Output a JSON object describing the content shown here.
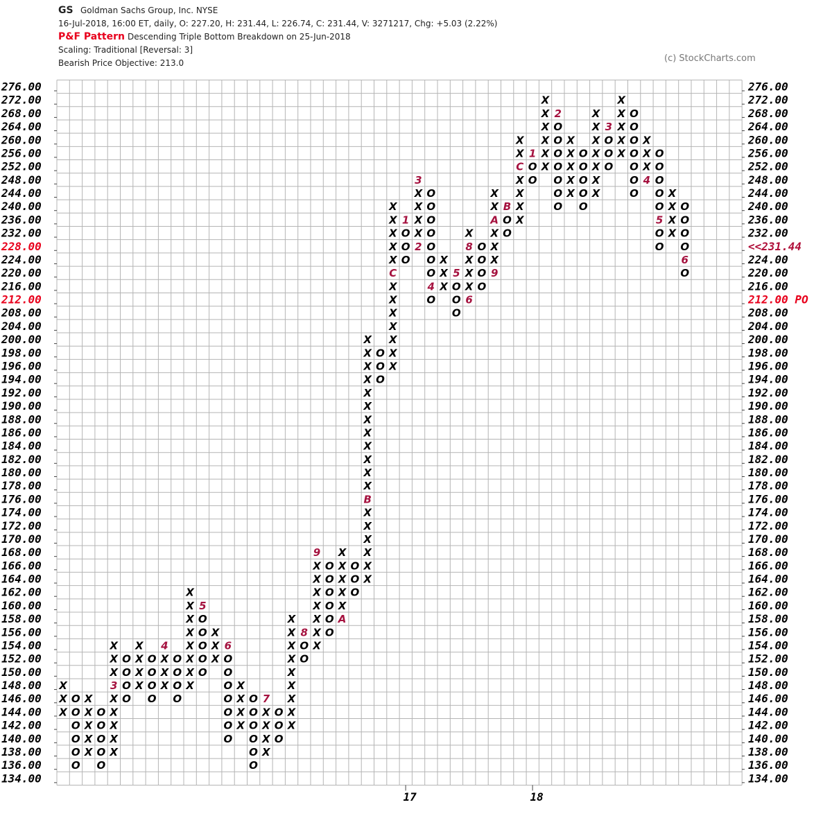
{
  "header": {
    "symbol": "GS",
    "name": "Goldman Sachs Group, Inc.  NYSE",
    "quote": "16-Jul-2018, 16:00 ET, daily, O: 227.20, H: 231.44, L: 226.74, C: 231.44, V: 3271217, Chg: +5.03 (2.22%)",
    "pattern_label": "P&F Pattern",
    "pattern": "Descending Triple Bottom Breakdown on 25-Jun-2018",
    "scaling": "Scaling: Traditional [Reversal: 3]",
    "objective": "Bearish Price Objective: 213.0",
    "copyright": "(c) StockCharts.com"
  },
  "chart_data": {
    "type": "pnf",
    "symbol_color": "#000000",
    "marker_color": "#a5123f",
    "grid": true,
    "yticks": [
      {
        "value": 276,
        "label": "276.00"
      },
      {
        "value": 272,
        "label": "272.00"
      },
      {
        "value": 268,
        "label": "268.00"
      },
      {
        "value": 264,
        "label": "264.00"
      },
      {
        "value": 260,
        "label": "260.00"
      },
      {
        "value": 256,
        "label": "256.00"
      },
      {
        "value": 252,
        "label": "252.00"
      },
      {
        "value": 248,
        "label": "248.00"
      },
      {
        "value": 244,
        "label": "244.00"
      },
      {
        "value": 240,
        "label": "240.00"
      },
      {
        "value": 236,
        "label": "236.00"
      },
      {
        "value": 232,
        "label": "232.00"
      },
      {
        "value": 228,
        "label": "228.00",
        "color": "#e8001c"
      },
      {
        "value": 224,
        "label": "224.00"
      },
      {
        "value": 220,
        "label": "220.00"
      },
      {
        "value": 216,
        "label": "216.00"
      },
      {
        "value": 212,
        "label": "212.00",
        "color": "#e8001c"
      },
      {
        "value": 208,
        "label": "208.00"
      },
      {
        "value": 204,
        "label": "204.00"
      },
      {
        "value": 200,
        "label": "200.00"
      },
      {
        "value": 198,
        "label": "198.00"
      },
      {
        "value": 196,
        "label": "196.00"
      },
      {
        "value": 194,
        "label": "194.00"
      },
      {
        "value": 192,
        "label": "192.00"
      },
      {
        "value": 190,
        "label": "190.00"
      },
      {
        "value": 188,
        "label": "188.00"
      },
      {
        "value": 186,
        "label": "186.00"
      },
      {
        "value": 184,
        "label": "184.00"
      },
      {
        "value": 182,
        "label": "182.00"
      },
      {
        "value": 180,
        "label": "180.00"
      },
      {
        "value": 178,
        "label": "178.00"
      },
      {
        "value": 176,
        "label": "176.00"
      },
      {
        "value": 174,
        "label": "174.00"
      },
      {
        "value": 172,
        "label": "172.00"
      },
      {
        "value": 170,
        "label": "170.00"
      },
      {
        "value": 168,
        "label": "168.00"
      },
      {
        "value": 166,
        "label": "166.00"
      },
      {
        "value": 164,
        "label": "164.00"
      },
      {
        "value": 162,
        "label": "162.00"
      },
      {
        "value": 160,
        "label": "160.00"
      },
      {
        "value": 158,
        "label": "158.00"
      },
      {
        "value": 156,
        "label": "156.00"
      },
      {
        "value": 154,
        "label": "154.00"
      },
      {
        "value": 152,
        "label": "152.00"
      },
      {
        "value": 150,
        "label": "150.00"
      },
      {
        "value": 148,
        "label": "148.00"
      },
      {
        "value": 146,
        "label": "146.00"
      },
      {
        "value": 144,
        "label": "144.00"
      },
      {
        "value": 142,
        "label": "142.00"
      },
      {
        "value": 140,
        "label": "140.00"
      },
      {
        "value": 138,
        "label": "138.00"
      },
      {
        "value": 136,
        "label": "136.00"
      },
      {
        "value": 134,
        "label": "134.00"
      }
    ],
    "y2ticks": [
      {
        "value": 276,
        "label": "276.00"
      },
      {
        "value": 272,
        "label": "272.00"
      },
      {
        "value": 268,
        "label": "268.00"
      },
      {
        "value": 264,
        "label": "264.00"
      },
      {
        "value": 260,
        "label": "260.00"
      },
      {
        "value": 256,
        "label": "256.00"
      },
      {
        "value": 252,
        "label": "252.00"
      },
      {
        "value": 248,
        "label": "248.00"
      },
      {
        "value": 244,
        "label": "244.00"
      },
      {
        "value": 240,
        "label": "240.00"
      },
      {
        "value": 236,
        "label": "236.00"
      },
      {
        "value": 232,
        "label": "232.00"
      },
      {
        "value": 228,
        "label": "<<231.44",
        "color": "#b0103a"
      },
      {
        "value": 224,
        "label": "224.00"
      },
      {
        "value": 220,
        "label": "220.00"
      },
      {
        "value": 216,
        "label": "216.00"
      },
      {
        "value": 212,
        "label": "212.00 PO",
        "color": "#e8001c"
      },
      {
        "value": 208,
        "label": "208.00"
      },
      {
        "value": 204,
        "label": "204.00"
      },
      {
        "value": 200,
        "label": "200.00"
      },
      {
        "value": 198,
        "label": "198.00"
      },
      {
        "value": 196,
        "label": "196.00"
      },
      {
        "value": 194,
        "label": "194.00"
      },
      {
        "value": 192,
        "label": "192.00"
      },
      {
        "value": 190,
        "label": "190.00"
      },
      {
        "value": 188,
        "label": "188.00"
      },
      {
        "value": 186,
        "label": "186.00"
      },
      {
        "value": 184,
        "label": "184.00"
      },
      {
        "value": 182,
        "label": "182.00"
      },
      {
        "value": 180,
        "label": "180.00"
      },
      {
        "value": 178,
        "label": "178.00"
      },
      {
        "value": 176,
        "label": "176.00"
      },
      {
        "value": 174,
        "label": "174.00"
      },
      {
        "value": 172,
        "label": "172.00"
      },
      {
        "value": 170,
        "label": "170.00"
      },
      {
        "value": 168,
        "label": "168.00"
      },
      {
        "value": 166,
        "label": "166.00"
      },
      {
        "value": 164,
        "label": "164.00"
      },
      {
        "value": 162,
        "label": "162.00"
      },
      {
        "value": 160,
        "label": "160.00"
      },
      {
        "value": 158,
        "label": "158.00"
      },
      {
        "value": 156,
        "label": "156.00"
      },
      {
        "value": 154,
        "label": "154.00"
      },
      {
        "value": 152,
        "label": "152.00"
      },
      {
        "value": 150,
        "label": "150.00"
      },
      {
        "value": 148,
        "label": "148.00"
      },
      {
        "value": 146,
        "label": "146.00"
      },
      {
        "value": 144,
        "label": "144.00"
      },
      {
        "value": 142,
        "label": "142.00"
      },
      {
        "value": 140,
        "label": "140.00"
      },
      {
        "value": 138,
        "label": "138.00"
      },
      {
        "value": 136,
        "label": "136.00"
      },
      {
        "value": 134,
        "label": "134.00"
      }
    ],
    "x_labels": [
      {
        "column": 27,
        "label": "17"
      },
      {
        "column": 37,
        "label": "18"
      }
    ],
    "columns": [
      {
        "symbol": "X",
        "from": 144,
        "to": 148,
        "markers": []
      },
      {
        "symbol": "O",
        "from": 136,
        "to": 146,
        "markers": []
      },
      {
        "symbol": "X",
        "from": 138,
        "to": 146,
        "markers": []
      },
      {
        "symbol": "O",
        "from": 136,
        "to": 144,
        "markers": []
      },
      {
        "symbol": "X",
        "from": 138,
        "to": 154,
        "markers": [
          {
            "value": 148,
            "label": "3"
          }
        ]
      },
      {
        "symbol": "O",
        "from": 146,
        "to": 152,
        "markers": []
      },
      {
        "symbol": "X",
        "from": 148,
        "to": 154,
        "markers": []
      },
      {
        "symbol": "O",
        "from": 146,
        "to": 152,
        "markers": []
      },
      {
        "symbol": "X",
        "from": 148,
        "to": 154,
        "markers": [
          {
            "value": 154,
            "label": "4"
          }
        ]
      },
      {
        "symbol": "O",
        "from": 146,
        "to": 152,
        "markers": []
      },
      {
        "symbol": "X",
        "from": 148,
        "to": 162,
        "markers": []
      },
      {
        "symbol": "O",
        "from": 150,
        "to": 160,
        "markers": [
          {
            "value": 160,
            "label": "5"
          }
        ]
      },
      {
        "symbol": "X",
        "from": 152,
        "to": 156,
        "markers": []
      },
      {
        "symbol": "O",
        "from": 140,
        "to": 154,
        "markers": [
          {
            "value": 154,
            "label": "6"
          }
        ]
      },
      {
        "symbol": "X",
        "from": 142,
        "to": 148,
        "markers": []
      },
      {
        "symbol": "O",
        "from": 136,
        "to": 146,
        "markers": []
      },
      {
        "symbol": "X",
        "from": 138,
        "to": 146,
        "markers": [
          {
            "value": 146,
            "label": "7"
          }
        ]
      },
      {
        "symbol": "O",
        "from": 140,
        "to": 144,
        "markers": []
      },
      {
        "symbol": "X",
        "from": 142,
        "to": 158,
        "markers": []
      },
      {
        "symbol": "O",
        "from": 152,
        "to": 156,
        "markers": [
          {
            "value": 156,
            "label": "8"
          }
        ]
      },
      {
        "symbol": "X",
        "from": 154,
        "to": 168,
        "markers": [
          {
            "value": 168,
            "label": "9"
          }
        ]
      },
      {
        "symbol": "O",
        "from": 156,
        "to": 166,
        "markers": []
      },
      {
        "symbol": "X",
        "from": 158,
        "to": 168,
        "markers": [
          {
            "value": 158,
            "label": "A"
          }
        ]
      },
      {
        "symbol": "O",
        "from": 162,
        "to": 166,
        "markers": []
      },
      {
        "symbol": "X",
        "from": 164,
        "to": 200,
        "markers": [
          {
            "value": 176,
            "label": "B"
          }
        ]
      },
      {
        "symbol": "O",
        "from": 194,
        "to": 198,
        "markers": []
      },
      {
        "symbol": "X",
        "from": 196,
        "to": 240,
        "markers": [
          {
            "value": 220,
            "label": "C"
          }
        ]
      },
      {
        "symbol": "O",
        "from": 224,
        "to": 236,
        "markers": [
          {
            "value": 236,
            "label": "1"
          }
        ]
      },
      {
        "symbol": "X",
        "from": 228,
        "to": 248,
        "markers": [
          {
            "value": 228,
            "label": "2"
          },
          {
            "value": 248,
            "label": "3"
          }
        ]
      },
      {
        "symbol": "O",
        "from": 212,
        "to": 244,
        "markers": [
          {
            "value": 216,
            "label": "4"
          }
        ]
      },
      {
        "symbol": "X",
        "from": 216,
        "to": 224,
        "markers": []
      },
      {
        "symbol": "O",
        "from": 208,
        "to": 220,
        "markers": [
          {
            "value": 220,
            "label": "5"
          }
        ]
      },
      {
        "symbol": "X",
        "from": 212,
        "to": 232,
        "markers": [
          {
            "value": 212,
            "label": "6"
          },
          {
            "value": 228,
            "label": "8"
          }
        ]
      },
      {
        "symbol": "O",
        "from": 216,
        "to": 228,
        "markers": []
      },
      {
        "symbol": "X",
        "from": 220,
        "to": 244,
        "markers": [
          {
            "value": 220,
            "label": "9"
          },
          {
            "value": 236,
            "label": "A"
          }
        ]
      },
      {
        "symbol": "O",
        "from": 232,
        "to": 240,
        "markers": [
          {
            "value": 240,
            "label": "B"
          }
        ]
      },
      {
        "symbol": "X",
        "from": 236,
        "to": 260,
        "markers": [
          {
            "value": 252,
            "label": "C"
          }
        ]
      },
      {
        "symbol": "O",
        "from": 248,
        "to": 256,
        "markers": [
          {
            "value": 256,
            "label": "1"
          }
        ]
      },
      {
        "symbol": "X",
        "from": 252,
        "to": 272,
        "markers": []
      },
      {
        "symbol": "O",
        "from": 240,
        "to": 268,
        "markers": [
          {
            "value": 268,
            "label": "2"
          }
        ]
      },
      {
        "symbol": "X",
        "from": 244,
        "to": 260,
        "markers": []
      },
      {
        "symbol": "O",
        "from": 240,
        "to": 256,
        "markers": []
      },
      {
        "symbol": "X",
        "from": 244,
        "to": 268,
        "markers": []
      },
      {
        "symbol": "O",
        "from": 252,
        "to": 264,
        "markers": [
          {
            "value": 264,
            "label": "3"
          }
        ]
      },
      {
        "symbol": "X",
        "from": 256,
        "to": 272,
        "markers": []
      },
      {
        "symbol": "O",
        "from": 244,
        "to": 268,
        "markers": []
      },
      {
        "symbol": "X",
        "from": 248,
        "to": 260,
        "markers": [
          {
            "value": 248,
            "label": "4"
          }
        ]
      },
      {
        "symbol": "O",
        "from": 228,
        "to": 256,
        "markers": [
          {
            "value": 236,
            "label": "5"
          }
        ]
      },
      {
        "symbol": "X",
        "from": 232,
        "to": 244,
        "markers": []
      },
      {
        "symbol": "O",
        "from": 220,
        "to": 240,
        "markers": [
          {
            "value": 224,
            "label": "6"
          }
        ]
      }
    ]
  }
}
